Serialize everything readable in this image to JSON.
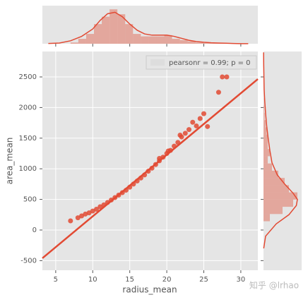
{
  "chart_data": {
    "type": "scatter",
    "xlabel": "radius_mean",
    "ylabel": "area_mean",
    "color": "#e24a33",
    "grid": true,
    "x": [
      7,
      8,
      8.5,
      9,
      9.5,
      10,
      10.5,
      11,
      11.5,
      12,
      12.5,
      13,
      13.5,
      14,
      14.5,
      15,
      15.5,
      16,
      16.5,
      17,
      17.5,
      18,
      18.5,
      19,
      19.5,
      20,
      20.5,
      21,
      21.5,
      22,
      21.8,
      22.5,
      23,
      24,
      24.5,
      25,
      25.5,
      23.5,
      27,
      27.5,
      28.1,
      20.2,
      19
    ],
    "values": [
      150,
      200,
      230,
      260,
      280,
      310,
      340,
      380,
      410,
      450,
      490,
      530,
      570,
      610,
      650,
      700,
      750,
      800,
      850,
      900,
      960,
      1010,
      1070,
      1130,
      1190,
      1250,
      1300,
      1370,
      1430,
      1520,
      1550,
      1580,
      1640,
      1700,
      1820,
      1900,
      1690,
      1760,
      2250,
      2500,
      2500,
      1290,
      1170
    ],
    "xlim": [
      3.2,
      32.3
    ],
    "ylim": [
      -657,
      2915
    ],
    "xticks": [
      5,
      10,
      15,
      20,
      25,
      30
    ],
    "yticks": [
      -500,
      0,
      500,
      1000,
      1500,
      2000,
      2500
    ],
    "legend": {
      "text": "pearsonr = 0.99; p = 0",
      "loc": "upper right"
    },
    "regression": {
      "x": [
        3.2,
        32.3
      ],
      "y": [
        -460,
        2465
      ]
    },
    "marginal_x": {
      "type": "histogram",
      "ylim": [
        0,
        0.155
      ],
      "bins": [
        7,
        8.055,
        9.11,
        10.165,
        11.22,
        12.275,
        13.33,
        14.385,
        15.44,
        16.495,
        17.55,
        18.605,
        19.66,
        20.715,
        21.77,
        22.825,
        23.88,
        24.935,
        25.99,
        27.045,
        28.1
      ],
      "counts": [
        0.005,
        0.02,
        0.04,
        0.08,
        0.11,
        0.14,
        0.12,
        0.08,
        0.04,
        0.03,
        0.03,
        0.03,
        0.035,
        0.02,
        0.015,
        0.01,
        0.005,
        0.003,
        0.002,
        0.004
      ],
      "kde": {
        "x": [
          4,
          5.5,
          7,
          8.5,
          10,
          11,
          12,
          13,
          14,
          15,
          16,
          17,
          18,
          19,
          20,
          21,
          22,
          23,
          24,
          25,
          26,
          27,
          28,
          29,
          30,
          31
        ],
        "y": [
          0.001,
          0.003,
          0.012,
          0.03,
          0.06,
          0.095,
          0.122,
          0.128,
          0.11,
          0.08,
          0.055,
          0.04,
          0.035,
          0.035,
          0.035,
          0.03,
          0.022,
          0.014,
          0.009,
          0.006,
          0.004,
          0.003,
          0.002,
          0.001,
          0.0005,
          0.0002
        ]
      }
    },
    "marginal_y": {
      "type": "histogram",
      "xlim": [
        0,
        0.0018
      ],
      "bins": [
        143,
        261,
        379,
        497,
        615,
        733,
        851,
        969,
        1087,
        1205,
        1323,
        1441,
        1559,
        1677,
        1795,
        1913,
        2031,
        2149,
        2267,
        2385,
        2503
      ],
      "counts": [
        0.0003,
        0.0009,
        0.0014,
        0.0016,
        0.0012,
        0.001,
        0.0007,
        0.0004,
        0.0002,
        0.0003,
        0.0002,
        0.0002,
        0.00015,
        0.0001,
        5e-05,
        3e-05,
        1e-05,
        0,
        0,
        2e-05
      ],
      "kde": {
        "y": [
          -300,
          -100,
          100,
          250,
          400,
          500,
          600,
          750,
          900,
          1100,
          1300,
          1500,
          1700,
          1900,
          2100,
          2300,
          2500,
          2700,
          2900
        ],
        "x": [
          1e-05,
          0.0001,
          0.0006,
          0.0012,
          0.00155,
          0.0016,
          0.0014,
          0.001,
          0.00065,
          0.0004,
          0.0003,
          0.00022,
          0.00015,
          0.0001,
          6e-05,
          3e-05,
          2e-05,
          1e-05,
          5e-06
        ]
      }
    }
  },
  "watermark": "知乎 @lrhao"
}
